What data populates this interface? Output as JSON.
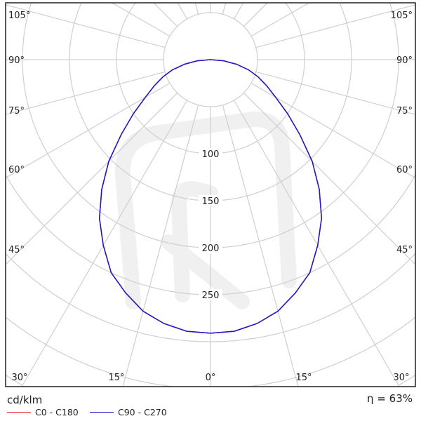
{
  "chart_data": {
    "type": "polar",
    "unit_label": "cd/klm",
    "efficiency_label": "η = 63%",
    "radial_ticks": [
      100,
      150,
      200,
      250
    ],
    "radial_rings": [
      50,
      100,
      150,
      200,
      250,
      300,
      350,
      400
    ],
    "angle_labels_left": [
      "105°",
      "90°",
      "75°",
      "60°",
      "45°"
    ],
    "angle_labels_right": [
      "105°",
      "90°",
      "75°",
      "60°",
      "45°"
    ],
    "angle_labels_bottom": [
      "30°",
      "15°",
      "0°",
      "15°",
      "30°"
    ],
    "angles_deg": [
      0,
      5,
      10,
      15,
      20,
      25,
      30,
      35,
      40,
      45,
      50,
      55,
      60,
      65,
      70,
      75,
      80,
      85,
      90
    ],
    "series": [
      {
        "name": "C0 - C180",
        "color": "#e8262b",
        "values": [
          291,
          290,
          285,
          277,
          264,
          250,
          228,
          206,
          180,
          153,
          124,
          100,
          80,
          66,
          54,
          42,
          28,
          14,
          0
        ]
      },
      {
        "name": "C90 - C270",
        "color": "#1a1acc",
        "values": [
          291,
          290,
          285,
          277,
          264,
          250,
          228,
          206,
          180,
          153,
          124,
          100,
          80,
          66,
          54,
          42,
          28,
          14,
          0
        ]
      }
    ],
    "grid": true,
    "legend_placement": "bottom-left"
  }
}
